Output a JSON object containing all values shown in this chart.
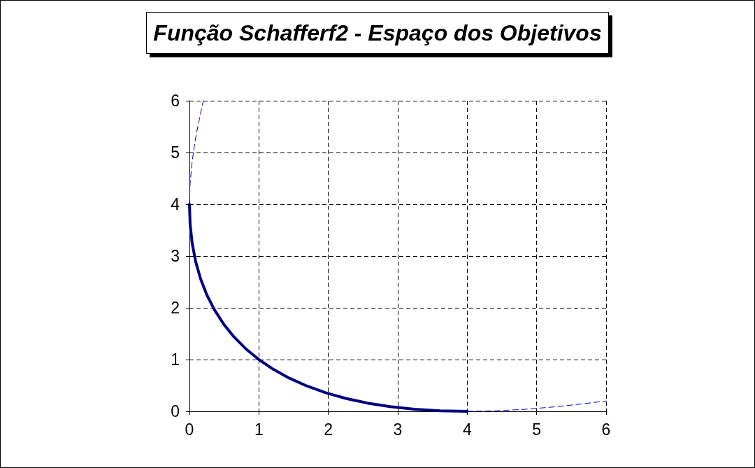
{
  "chart_data": {
    "type": "line",
    "title": "Função Schafferf2 - Espaço dos Objetivos",
    "xlim": [
      0,
      6
    ],
    "xticks": [
      0,
      1,
      2,
      3,
      4,
      5,
      6
    ],
    "ylim": [
      0,
      6
    ],
    "yticks": [
      0,
      1,
      2,
      3,
      4,
      5,
      6
    ],
    "grid": true,
    "marker": "none",
    "series": [
      {
        "color": "#0000cc",
        "line_style": "dashed",
        "x": [
          0,
          0.01,
          0.04,
          0.09,
          0.16,
          0.2
        ],
        "values": [
          4,
          4.41,
          4.84,
          5.29,
          5.76,
          6.0
        ]
      },
      {
        "color": "#0000cc",
        "line_style": "dashed",
        "x": [
          4,
          4.41,
          4.84,
          5.29,
          5.76,
          6.0
        ],
        "values": [
          0,
          0.01,
          0.04,
          0.09,
          0.16,
          0.2
        ]
      },
      {
        "color": "#000080",
        "line_style": "solid",
        "x": [
          0,
          0.01,
          0.04,
          0.09,
          0.16,
          0.25,
          0.36,
          0.49,
          0.64,
          0.81,
          1,
          1.21,
          1.44,
          1.69,
          1.96,
          2.25,
          2.56,
          2.89,
          3.24,
          3.61,
          4
        ],
        "values": [
          4,
          3.61,
          3.24,
          2.89,
          2.56,
          2.25,
          1.96,
          1.69,
          1.44,
          1.21,
          1,
          0.81,
          0.64,
          0.49,
          0.36,
          0.25,
          0.16,
          0.09,
          0.04,
          0.01,
          0
        ]
      }
    ]
  }
}
